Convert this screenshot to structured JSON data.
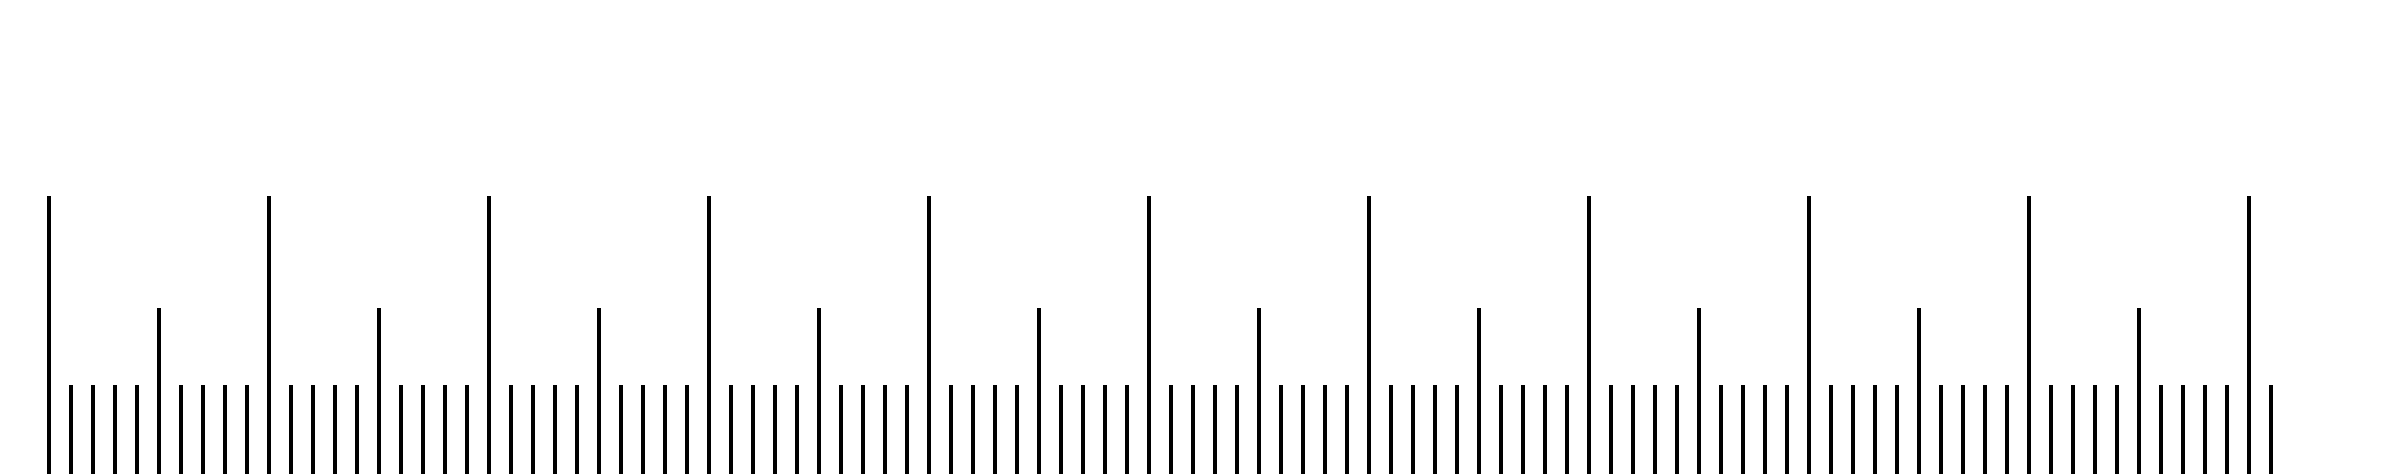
{
  "ruler": {
    "major_count": 11,
    "subdivisions_per_major": 10,
    "tick_color": "#000000",
    "background_color": "#ffffff",
    "labels": []
  }
}
